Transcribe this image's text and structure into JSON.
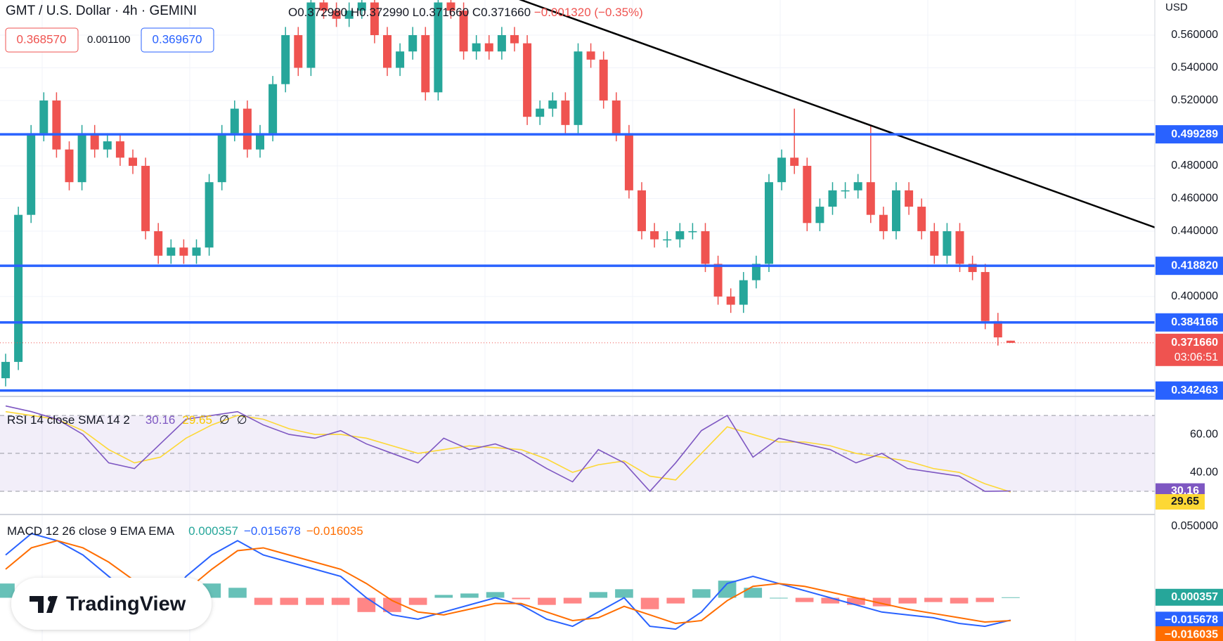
{
  "chart_data": [
    {
      "type": "candlestick",
      "title": "GMT / U.S. Dollar · 4h · GEMINI",
      "currency": "USD",
      "legend": {
        "open": "O0.372980",
        "high": "H0.372990",
        "low": "L0.371660",
        "close": "C0.371660",
        "change": "−0.001320 (−0.35%)"
      },
      "bid": "0.368570",
      "spread": "0.001100",
      "ask": "0.369670",
      "up_color": "#26a69a",
      "down_color": "#ef5350",
      "open": [
        0.35,
        0.36,
        0.45,
        0.5,
        0.52,
        0.49,
        0.47,
        0.5,
        0.49,
        0.495,
        0.485,
        0.48,
        0.44,
        0.425,
        0.43,
        0.425,
        0.43,
        0.47,
        0.5,
        0.515,
        0.49,
        0.5,
        0.53,
        0.56,
        0.54,
        0.58,
        0.575,
        0.57,
        0.575,
        0.58,
        0.56,
        0.54,
        0.55,
        0.56,
        0.525,
        0.58,
        0.575,
        0.55,
        0.555,
        0.55,
        0.56,
        0.555,
        0.51,
        0.515,
        0.52,
        0.505,
        0.55,
        0.545,
        0.52,
        0.5,
        0.465,
        0.44,
        0.435,
        0.435,
        0.44,
        0.44,
        0.42,
        0.4,
        0.395,
        0.41,
        0.42,
        0.47,
        0.485,
        0.48,
        0.445,
        0.455,
        0.465,
        0.465,
        0.47,
        0.45,
        0.44,
        0.465,
        0.455,
        0.44,
        0.425,
        0.44,
        0.42,
        0.415,
        0.385,
        0.37298
      ],
      "high": [
        0.365,
        0.455,
        0.505,
        0.525,
        0.525,
        0.495,
        0.505,
        0.505,
        0.5,
        0.5,
        0.49,
        0.485,
        0.445,
        0.435,
        0.435,
        0.435,
        0.475,
        0.505,
        0.52,
        0.52,
        0.505,
        0.535,
        0.565,
        0.565,
        0.585,
        0.585,
        0.58,
        0.58,
        0.585,
        0.585,
        0.565,
        0.555,
        0.565,
        0.565,
        0.585,
        0.585,
        0.58,
        0.56,
        0.56,
        0.565,
        0.565,
        0.56,
        0.52,
        0.525,
        0.525,
        0.555,
        0.555,
        0.55,
        0.525,
        0.505,
        0.47,
        0.445,
        0.44,
        0.445,
        0.445,
        0.445,
        0.425,
        0.405,
        0.415,
        0.425,
        0.475,
        0.49,
        0.515,
        0.485,
        0.46,
        0.47,
        0.47,
        0.475,
        0.505,
        0.455,
        0.47,
        0.47,
        0.46,
        0.445,
        0.445,
        0.445,
        0.425,
        0.42,
        0.39,
        0.37299
      ],
      "low": [
        0.345,
        0.355,
        0.445,
        0.495,
        0.485,
        0.465,
        0.465,
        0.485,
        0.485,
        0.48,
        0.475,
        0.435,
        0.42,
        0.42,
        0.42,
        0.42,
        0.425,
        0.465,
        0.495,
        0.485,
        0.485,
        0.495,
        0.525,
        0.535,
        0.535,
        0.57,
        0.565,
        0.565,
        0.57,
        0.555,
        0.535,
        0.535,
        0.545,
        0.52,
        0.52,
        0.57,
        0.545,
        0.545,
        0.545,
        0.545,
        0.55,
        0.505,
        0.505,
        0.51,
        0.5,
        0.5,
        0.54,
        0.515,
        0.495,
        0.46,
        0.435,
        0.43,
        0.43,
        0.43,
        0.435,
        0.415,
        0.395,
        0.39,
        0.39,
        0.405,
        0.415,
        0.465,
        0.475,
        0.44,
        0.44,
        0.45,
        0.46,
        0.46,
        0.445,
        0.435,
        0.435,
        0.45,
        0.435,
        0.42,
        0.42,
        0.415,
        0.41,
        0.38,
        0.37,
        0.37166
      ],
      "close": [
        0.36,
        0.45,
        0.5,
        0.52,
        0.49,
        0.47,
        0.5,
        0.49,
        0.495,
        0.485,
        0.48,
        0.44,
        0.425,
        0.43,
        0.425,
        0.43,
        0.47,
        0.5,
        0.515,
        0.49,
        0.5,
        0.53,
        0.56,
        0.54,
        0.58,
        0.575,
        0.57,
        0.575,
        0.58,
        0.56,
        0.54,
        0.55,
        0.56,
        0.525,
        0.58,
        0.575,
        0.55,
        0.555,
        0.55,
        0.56,
        0.555,
        0.51,
        0.515,
        0.52,
        0.505,
        0.55,
        0.545,
        0.52,
        0.5,
        0.465,
        0.44,
        0.435,
        0.435,
        0.44,
        0.44,
        0.42,
        0.4,
        0.395,
        0.41,
        0.42,
        0.47,
        0.485,
        0.48,
        0.445,
        0.455,
        0.465,
        0.465,
        0.47,
        0.45,
        0.44,
        0.465,
        0.455,
        0.44,
        0.425,
        0.44,
        0.42,
        0.415,
        0.385,
        0.375,
        0.37166
      ],
      "ylim": [
        0.3406,
        0.5815
      ],
      "yticks": [
        {
          "value": 0.56,
          "label": "0.560000"
        },
        {
          "value": 0.54,
          "label": "0.540000"
        },
        {
          "value": 0.52,
          "label": "0.520000"
        },
        {
          "value": 0.48,
          "label": "0.480000"
        },
        {
          "value": 0.46,
          "label": "0.460000"
        },
        {
          "value": 0.44,
          "label": "0.440000"
        },
        {
          "value": 0.4,
          "label": "0.400000"
        }
      ],
      "hlines": [
        {
          "value": 0.499289,
          "label": "0.499289"
        },
        {
          "value": 0.41882,
          "label": "0.418820"
        },
        {
          "value": 0.384166,
          "label": "0.384166"
        },
        {
          "value": 0.342463,
          "label": "0.342463"
        }
      ],
      "hline_color": "#2962ff",
      "trendline": {
        "x": [
          40,
          90.8
        ],
        "y": [
          0.583,
          0.441
        ]
      },
      "last": {
        "value": 0.37166,
        "label": "0.371660"
      },
      "countdown": "03:06:51"
    },
    {
      "type": "line",
      "title": "RSI 14 close SMA 14 2",
      "extra": [
        "∅",
        "∅"
      ],
      "series": [
        {
          "name": "30.16",
          "color": "#7e57c2",
          "values": [
            75,
            72,
            68,
            60,
            45,
            42,
            55,
            68,
            70,
            72,
            65,
            60,
            58,
            62,
            55,
            50,
            45,
            58,
            52,
            55,
            50,
            42,
            35,
            52,
            45,
            30,
            45,
            62,
            70,
            48,
            58,
            55,
            52,
            45,
            50,
            42,
            40,
            38,
            30,
            30.16
          ]
        },
        {
          "name": "29.65",
          "color": "#fdd835",
          "values": [
            72,
            70,
            68,
            62,
            52,
            45,
            48,
            58,
            65,
            70,
            68,
            63,
            60,
            60,
            58,
            54,
            50,
            52,
            54,
            53,
            52,
            47,
            40,
            44,
            46,
            38,
            36,
            50,
            64,
            60,
            56,
            56,
            54,
            50,
            48,
            46,
            42,
            40,
            34,
            29.65
          ]
        }
      ],
      "bands": [
        70,
        50,
        30
      ],
      "ylim": [
        18.9,
        76.7
      ],
      "yticks": [
        {
          "value": 60,
          "label": "60.00"
        },
        {
          "value": 40,
          "label": "40.00"
        }
      ]
    },
    {
      "type": "macd",
      "title": "MACD 12 26 close 9 EMA EMA",
      "histogram": {
        "name": "0.000357",
        "up_color": "#26a69a",
        "down_color": "#ff5252",
        "values": [
          0.01,
          0.01,
          0.0,
          -0.005,
          -0.01,
          -0.012,
          -0.01,
          0.01,
          0.01,
          0.007,
          -0.005,
          -0.005,
          -0.005,
          -0.005,
          -0.01,
          -0.01,
          -0.005,
          0.002,
          0.003,
          0.004,
          -0.001,
          -0.005,
          -0.004,
          0.004,
          0.006,
          -0.008,
          -0.004,
          0.006,
          0.012,
          0.007,
          0.0,
          -0.003,
          -0.004,
          -0.005,
          -0.006,
          -0.004,
          -0.003,
          -0.004,
          -0.003,
          0.000357
        ]
      },
      "series": [
        {
          "name": "−0.015678",
          "color": "#2962ff",
          "values": [
            0.03,
            0.045,
            0.04,
            0.03,
            0.015,
            0.0,
            -0.01,
            0.015,
            0.03,
            0.04,
            0.03,
            0.025,
            0.02,
            0.015,
            0.0,
            -0.012,
            -0.015,
            -0.01,
            -0.005,
            0.0,
            -0.005,
            -0.015,
            -0.02,
            -0.01,
            0.0,
            -0.02,
            -0.022,
            -0.01,
            0.01,
            0.015,
            0.01,
            0.005,
            0.0,
            -0.005,
            -0.01,
            -0.012,
            -0.014,
            -0.018,
            -0.02,
            -0.015678
          ]
        },
        {
          "name": "−0.016035",
          "color": "#ff6d00",
          "values": [
            0.02,
            0.035,
            0.04,
            0.035,
            0.025,
            0.012,
            0.0,
            0.005,
            0.02,
            0.033,
            0.035,
            0.03,
            0.025,
            0.02,
            0.01,
            -0.002,
            -0.01,
            -0.012,
            -0.008,
            -0.004,
            -0.004,
            -0.01,
            -0.016,
            -0.014,
            -0.006,
            -0.012,
            -0.018,
            -0.016,
            -0.002,
            0.008,
            0.01,
            0.008,
            0.004,
            0.0,
            -0.004,
            -0.008,
            -0.011,
            -0.014,
            -0.017,
            -0.016035
          ]
        }
      ],
      "ylim": [
        -0.0303,
        0.0569
      ],
      "yticks": [
        {
          "value": 0.05,
          "label": "0.050000"
        }
      ]
    }
  ],
  "brand": "TradingView"
}
